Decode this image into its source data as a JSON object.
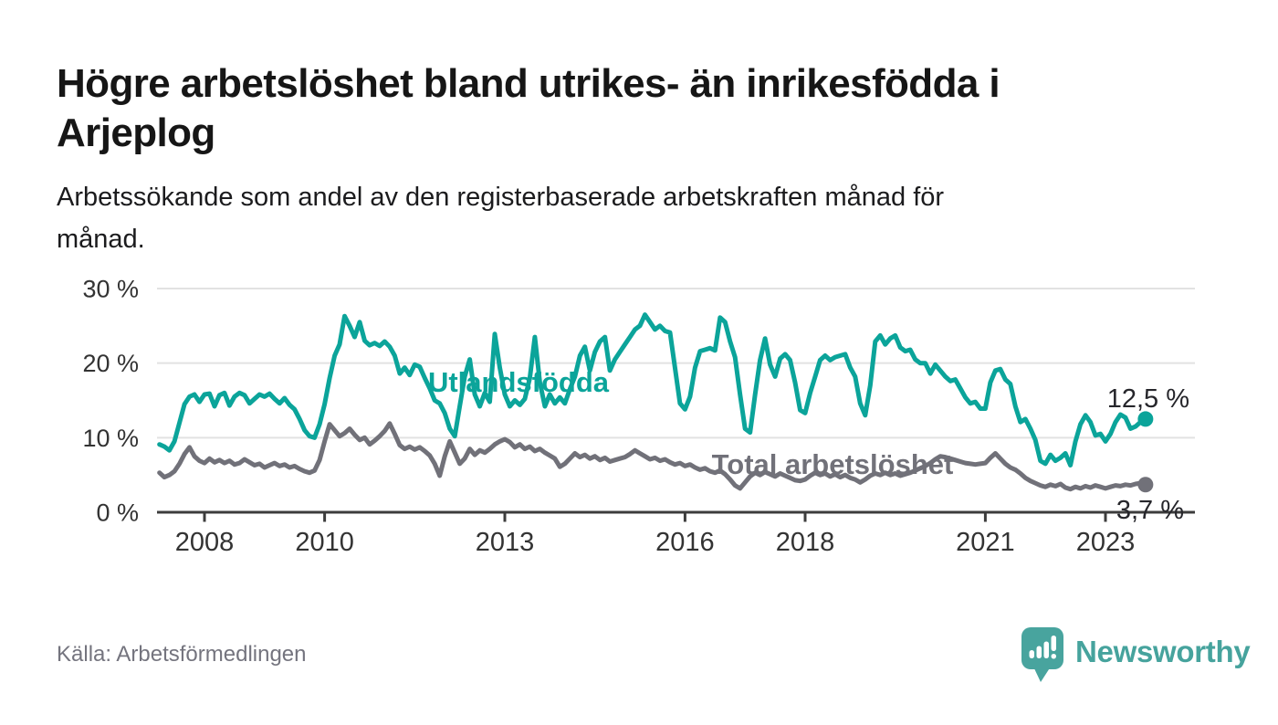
{
  "header": {
    "title": "Högre arbetslöshet bland utrikes- än inrikesfödda i Arjeplog",
    "title_lines": [
      "Högre arbetslöshet bland utrikes- än inrikesfödda i",
      "Arjeplog"
    ],
    "subtitle_lines": [
      "Arbetssökande som andel av den registerbaserade arbetskraften månad för",
      "månad."
    ]
  },
  "footer": {
    "source": "Källa: Arbetsförmedlingen",
    "brand": "Newsworthy"
  },
  "colors": {
    "series_foreign": "#0ba49a",
    "series_total": "#717179",
    "grid": "#e2e2e2",
    "axis": "#3c3c3c",
    "tick_label": "#333333",
    "end_label": "#26262b",
    "brand": "#48a49e"
  },
  "chart_data": {
    "type": "line",
    "unit": "percent",
    "frequency": "monthly",
    "x_start": "2007-04",
    "x_end": "2023-09",
    "ylim": [
      0,
      30
    ],
    "grid": true,
    "y_ticks": [
      {
        "label": "0 %",
        "value": 0
      },
      {
        "label": "10 %",
        "value": 10
      },
      {
        "label": "20 %",
        "value": 20
      },
      {
        "label": "30 %",
        "value": 30
      }
    ],
    "x_ticks": [
      {
        "label": "2008",
        "year": 2008
      },
      {
        "label": "2010",
        "year": 2010
      },
      {
        "label": "2013",
        "year": 2013
      },
      {
        "label": "2016",
        "year": 2016
      },
      {
        "label": "2018",
        "year": 2018
      },
      {
        "label": "2021",
        "year": 2021
      },
      {
        "label": "2023",
        "year": 2023
      }
    ],
    "series": [
      {
        "id": "utlandsfodda",
        "name": "Utlandsfödda",
        "color": "#0ba49a",
        "end_label": "12,5 %",
        "values": [
          9.1,
          8.8,
          8.3,
          9.5,
          12.0,
          14.5,
          15.5,
          15.8,
          14.8,
          15.8,
          15.9,
          14.2,
          15.7,
          16.0,
          14.3,
          15.5,
          16.0,
          15.7,
          14.6,
          15.2,
          15.8,
          15.5,
          15.9,
          15.2,
          14.6,
          15.3,
          14.4,
          13.8,
          12.5,
          11.0,
          10.2,
          10.0,
          11.8,
          14.5,
          18.0,
          21.0,
          22.5,
          26.3,
          25.0,
          23.5,
          25.5,
          23.0,
          22.4,
          22.7,
          22.3,
          22.9,
          22.2,
          21.0,
          18.6,
          19.4,
          18.4,
          19.8,
          19.5,
          18.0,
          16.6,
          15.0,
          14.6,
          13.3,
          11.2,
          10.2,
          14.2,
          18.2,
          20.5,
          15.8,
          14.2,
          16.0,
          14.8,
          23.9,
          19.4,
          15.8,
          14.2,
          15.0,
          14.4,
          15.2,
          18.0,
          23.5,
          17.4,
          14.2,
          15.8,
          14.6,
          15.4,
          14.6,
          16.5,
          18.2,
          21.0,
          22.2,
          19.0,
          21.5,
          22.9,
          23.5,
          19.0,
          20.5,
          21.5,
          22.5,
          23.5,
          24.5,
          25.0,
          26.5,
          25.5,
          24.5,
          25.0,
          24.3,
          24.1,
          19.4,
          14.6,
          13.8,
          15.5,
          19.4,
          21.6,
          21.8,
          22.0,
          21.7,
          26.1,
          25.5,
          22.9,
          20.8,
          15.8,
          11.2,
          10.7,
          15.8,
          20.4,
          23.3,
          19.8,
          18.2,
          20.6,
          21.2,
          20.4,
          17.4,
          13.7,
          13.3,
          16.0,
          18.2,
          20.4,
          21.0,
          20.4,
          20.8,
          21.0,
          21.2,
          19.4,
          18.2,
          14.6,
          13.0,
          17.0,
          22.9,
          23.7,
          22.5,
          23.3,
          23.7,
          22.1,
          21.6,
          21.8,
          20.5,
          20.0,
          20.0,
          18.6,
          19.8,
          19.0,
          18.2,
          17.6,
          17.8,
          16.6,
          15.4,
          14.6,
          14.8,
          13.9,
          13.9,
          17.4,
          19.0,
          19.2,
          17.8,
          17.2,
          14.2,
          12.1,
          12.5,
          11.2,
          9.7,
          6.9,
          6.5,
          7.7,
          6.9,
          7.3,
          7.9,
          6.3,
          9.5,
          11.8,
          13.0,
          12.1,
          10.3,
          10.5,
          9.5,
          10.5,
          12.1,
          13.1,
          12.7,
          11.2,
          11.5,
          12.1,
          12.5
        ]
      },
      {
        "id": "total",
        "name": "Total arbetslöshet",
        "color": "#717179",
        "end_label": "3,7 %",
        "values": [
          5.3,
          4.7,
          5.0,
          5.5,
          6.5,
          7.8,
          8.7,
          7.5,
          6.9,
          6.6,
          7.2,
          6.7,
          7.0,
          6.6,
          6.9,
          6.4,
          6.6,
          7.1,
          6.7,
          6.3,
          6.5,
          6.0,
          6.3,
          6.6,
          6.2,
          6.4,
          6.0,
          6.2,
          5.8,
          5.5,
          5.3,
          5.6,
          7.0,
          9.5,
          11.8,
          11.0,
          10.2,
          10.6,
          11.2,
          10.4,
          9.7,
          10.0,
          9.1,
          9.6,
          10.2,
          10.9,
          11.9,
          10.5,
          9.0,
          8.5,
          8.8,
          8.4,
          8.7,
          8.2,
          7.6,
          6.5,
          4.9,
          7.5,
          9.5,
          8.0,
          6.5,
          7.2,
          8.5,
          7.7,
          8.3,
          8.0,
          8.5,
          9.1,
          9.5,
          9.8,
          9.4,
          8.7,
          9.1,
          8.5,
          8.8,
          8.2,
          8.5,
          8.0,
          7.6,
          7.2,
          6.1,
          6.5,
          7.2,
          7.9,
          7.4,
          7.7,
          7.2,
          7.5,
          7.0,
          7.3,
          6.8,
          7.0,
          7.2,
          7.4,
          7.8,
          8.3,
          7.9,
          7.5,
          7.1,
          7.3,
          6.9,
          7.1,
          6.7,
          6.4,
          6.6,
          6.2,
          6.4,
          6.0,
          5.7,
          5.9,
          5.5,
          5.3,
          5.6,
          5.1,
          4.4,
          3.6,
          3.2,
          4.0,
          4.8,
          5.3,
          5.0,
          5.4,
          5.1,
          4.8,
          5.2,
          4.9,
          4.6,
          4.3,
          4.2,
          4.4,
          4.9,
          5.3,
          5.0,
          5.2,
          4.8,
          5.1,
          4.7,
          5.0,
          4.6,
          4.4,
          4.0,
          4.4,
          4.9,
          5.2,
          5.0,
          5.3,
          5.0,
          5.2,
          4.9,
          5.1,
          5.3,
          5.6,
          5.9,
          6.2,
          6.6,
          7.1,
          7.5,
          7.4,
          7.2,
          7.0,
          6.8,
          6.6,
          6.5,
          6.4,
          6.5,
          6.6,
          7.3,
          7.9,
          7.2,
          6.5,
          6.0,
          5.7,
          5.2,
          4.6,
          4.2,
          3.9,
          3.6,
          3.4,
          3.7,
          3.5,
          3.8,
          3.3,
          3.1,
          3.4,
          3.2,
          3.5,
          3.3,
          3.6,
          3.4,
          3.2,
          3.4,
          3.6,
          3.5,
          3.7,
          3.6,
          3.8,
          3.9,
          3.7
        ]
      }
    ]
  }
}
